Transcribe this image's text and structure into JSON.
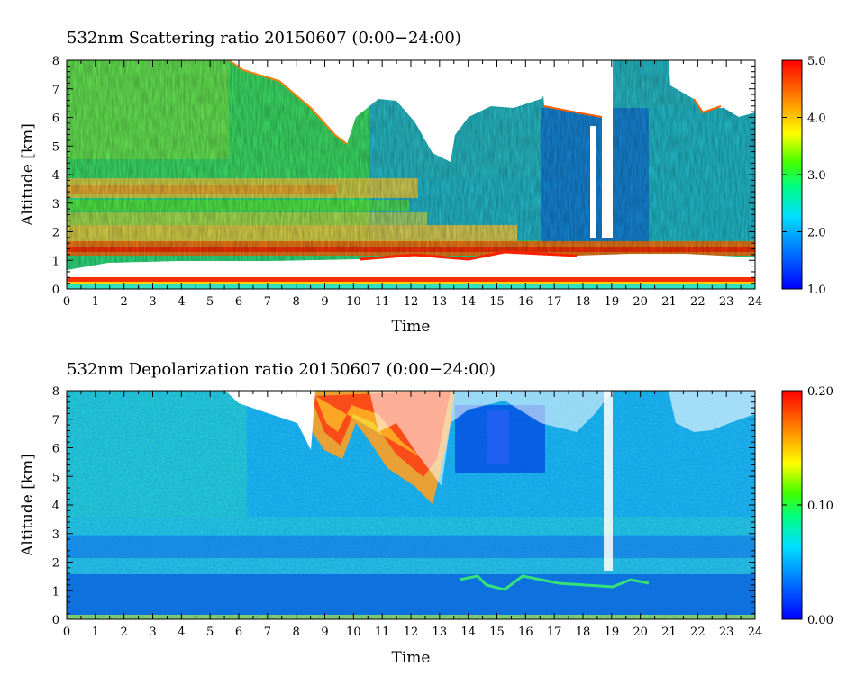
{
  "chart_data": [
    {
      "type": "heatmap",
      "title": "532nm Scattering ratio  20150607 (0:00−24:00)",
      "xlabel": "Time",
      "ylabel": "Altitude [km]",
      "xlim": [
        0,
        24
      ],
      "ylim": [
        0,
        8
      ],
      "x_ticks": [
        "0",
        "1",
        "2",
        "3",
        "4",
        "5",
        "6",
        "7",
        "8",
        "9",
        "10",
        "11",
        "12",
        "13",
        "14",
        "15",
        "16",
        "17",
        "18",
        "19",
        "20",
        "21",
        "22",
        "23",
        "24"
      ],
      "y_ticks": [
        "0",
        "1",
        "2",
        "3",
        "4",
        "5",
        "6",
        "7",
        "8"
      ],
      "colorbar": {
        "range": [
          1.0,
          5.0
        ],
        "tick_labels": [
          "1.0",
          "2.0",
          "3.0",
          "4.0",
          "5.0"
        ],
        "colors": [
          "#0000ff",
          "#00ffff",
          "#00ff00",
          "#ffff00",
          "#ff8000",
          "#ff0000"
        ]
      },
      "features": {
        "surface_layer_km": [
          0.0,
          0.3
        ],
        "low_cloud_base_km": 1.3,
        "aerosol_layer_km": [
          2.7,
          3.8
        ],
        "high_cloud_gaps_hours": [
          [
            10.0,
            13.5
          ],
          [
            17.0,
            19.0
          ],
          [
            21.5,
            24.0
          ]
        ]
      }
    },
    {
      "type": "heatmap",
      "title": "532nm Depolarization ratio  20150607 (0:00−24:00)",
      "xlabel": "Time",
      "ylabel": "Altitude [km]",
      "xlim": [
        0,
        24
      ],
      "ylim": [
        0,
        8
      ],
      "x_ticks": [
        "0",
        "1",
        "2",
        "3",
        "4",
        "5",
        "6",
        "7",
        "8",
        "9",
        "10",
        "11",
        "12",
        "13",
        "14",
        "15",
        "16",
        "17",
        "18",
        "19",
        "20",
        "21",
        "22",
        "23",
        "24"
      ],
      "y_ticks": [
        "0",
        "1",
        "2",
        "3",
        "4",
        "5",
        "6",
        "7",
        "8"
      ],
      "colorbar": {
        "range": [
          0.0,
          0.2
        ],
        "tick_labels": [
          "0.00",
          "0.10",
          "0.20"
        ],
        "colors": [
          "#0000ff",
          "#00ffff",
          "#00ff00",
          "#ffff00",
          "#ff8000",
          "#ff0000"
        ]
      },
      "features": {
        "ice_cloud_hours": [
          8.5,
          13.5
        ],
        "ice_cloud_km": [
          4.0,
          8.0
        ]
      }
    }
  ]
}
